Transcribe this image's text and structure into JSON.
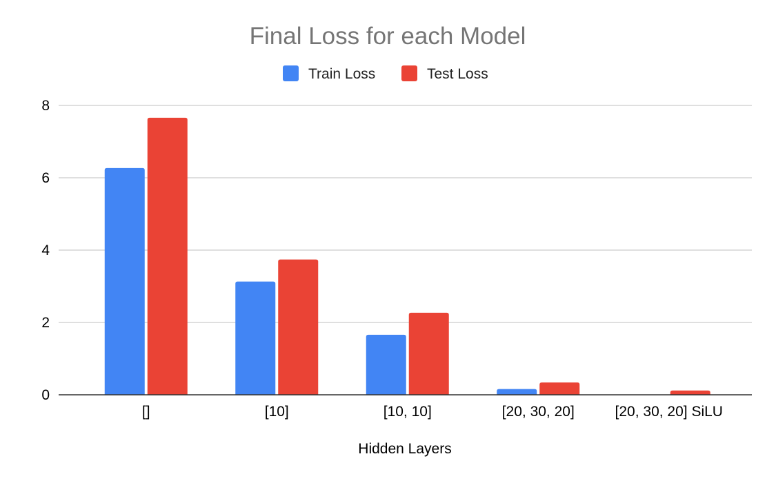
{
  "chart_data": {
    "type": "bar",
    "title": "Final Loss for each Model",
    "xlabel": "Hidden Layers",
    "ylabel": "",
    "categories": [
      "[]",
      "[10]",
      "[10, 10]",
      "[20, 30, 20]",
      "[20, 30, 20] SiLU"
    ],
    "series": [
      {
        "name": "Train Loss",
        "color": "#4285f4",
        "values": [
          6.27,
          3.13,
          1.66,
          0.16,
          0.0
        ]
      },
      {
        "name": "Test Loss",
        "color": "#ea4335",
        "values": [
          7.66,
          3.74,
          2.27,
          0.34,
          0.12
        ]
      }
    ],
    "ylim": [
      0,
      8
    ],
    "yticks": [
      0,
      2,
      4,
      6,
      8
    ],
    "grid": true,
    "legend_position": "top-center"
  }
}
